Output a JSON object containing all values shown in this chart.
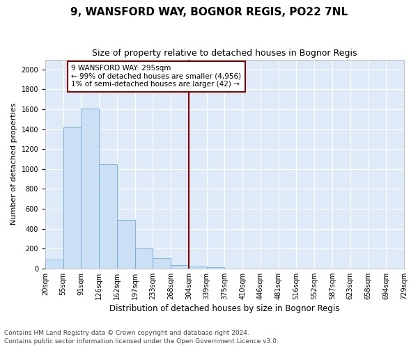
{
  "title1": "9, WANSFORD WAY, BOGNOR REGIS, PO22 7NL",
  "title2": "Size of property relative to detached houses in Bognor Regis",
  "xlabel": "Distribution of detached houses by size in Bognor Regis",
  "ylabel": "Number of detached properties",
  "bin_labels": [
    "20sqm",
    "55sqm",
    "91sqm",
    "126sqm",
    "162sqm",
    "197sqm",
    "233sqm",
    "268sqm",
    "304sqm",
    "339sqm",
    "375sqm",
    "410sqm",
    "446sqm",
    "481sqm",
    "516sqm",
    "552sqm",
    "587sqm",
    "623sqm",
    "658sqm",
    "694sqm",
    "729sqm"
  ],
  "bar_values": [
    90,
    1420,
    1610,
    1050,
    490,
    210,
    105,
    35,
    20,
    10,
    0,
    0,
    0,
    0,
    0,
    0,
    0,
    0,
    0,
    0
  ],
  "bar_color": "#cce0f5",
  "bar_edge_color": "#6aaed6",
  "vline_color": "#8B0000",
  "annotation_text": "9 WANSFORD WAY: 295sqm\n← 99% of detached houses are smaller (4,956)\n1% of semi-detached houses are larger (42) →",
  "annotation_box_color": "#8B0000",
  "ylim": [
    0,
    2100
  ],
  "yticks": [
    0,
    200,
    400,
    600,
    800,
    1000,
    1200,
    1400,
    1600,
    1800,
    2000
  ],
  "footer1": "Contains HM Land Registry data © Crown copyright and database right 2024.",
  "footer2": "Contains public sector information licensed under the Open Government Licence v3.0.",
  "plot_bg": "#deeaf7",
  "grid_color": "#ffffff",
  "title1_fontsize": 11,
  "title2_fontsize": 9,
  "xlabel_fontsize": 8.5,
  "ylabel_fontsize": 8,
  "tick_fontsize": 7,
  "footer_fontsize": 6.5,
  "annotation_fontsize": 7.5
}
